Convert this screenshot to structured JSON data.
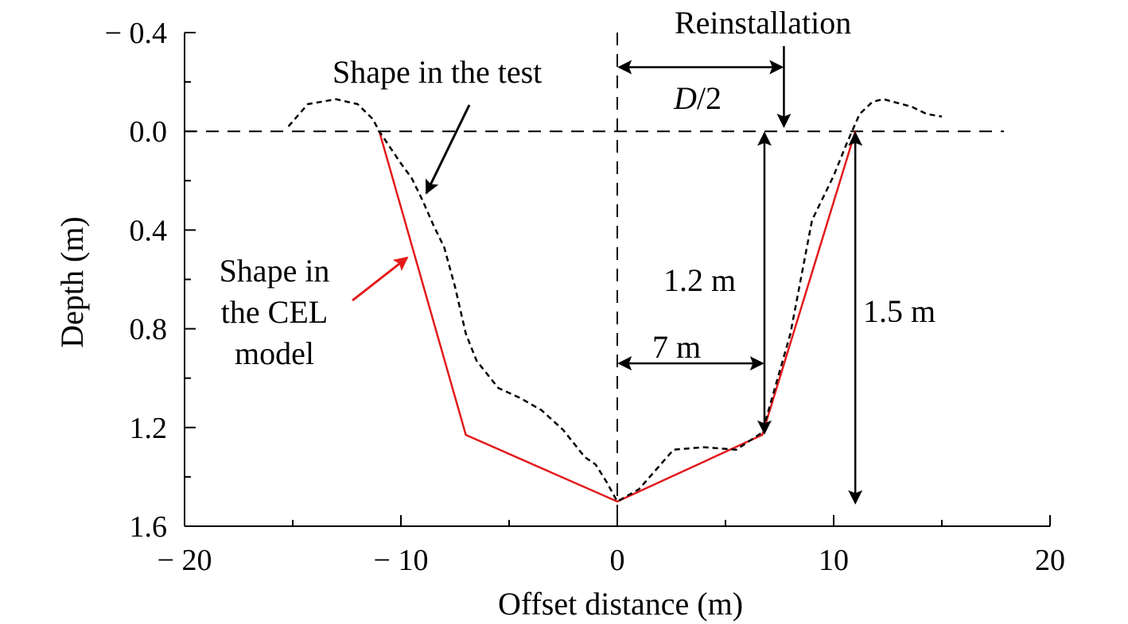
{
  "chart_data": {
    "type": "line",
    "xlabel": "Offset distance (m)",
    "ylabel": "Depth (m)",
    "xlim": [
      -20,
      20
    ],
    "ylim": [
      -0.4,
      1.6
    ],
    "y_inverted": true,
    "x_ticks": [
      -20,
      -10,
      0,
      10,
      20
    ],
    "x_tick_labels": [
      "− 20",
      "− 10",
      "0",
      "10",
      "20"
    ],
    "y_ticks": [
      -0.4,
      0.0,
      0.4,
      0.8,
      1.2,
      1.6
    ],
    "y_tick_labels": [
      "− 0.4",
      "0.0",
      "0.4",
      "0.8",
      "1.2",
      "1.6"
    ],
    "grid": false,
    "series": [
      {
        "name": "Shape in the CEL model",
        "color": "#e31a1c",
        "style": "solid",
        "x": [
          -11,
          -7,
          0,
          6.7,
          11
        ],
        "y": [
          0.0,
          1.23,
          1.5,
          1.23,
          0.0
        ]
      },
      {
        "name": "Shape in the test",
        "color": "#000000",
        "style": "dashed",
        "x": [
          -15.2,
          -14.3,
          -13,
          -12,
          -11.3,
          -11,
          -10,
          -9.5,
          -9,
          -8.5,
          -8,
          -7.5,
          -7,
          -6.5,
          -5.5,
          -4.5,
          -3.5,
          -2.5,
          -1.5,
          -1,
          -0.5,
          0,
          1,
          2,
          2.6,
          4,
          5.5,
          6.7,
          8,
          9,
          10,
          10.6,
          11.2,
          11.8,
          12.3,
          13.6,
          14.3,
          15
        ],
        "y": [
          -0.02,
          -0.11,
          -0.13,
          -0.11,
          -0.05,
          0.0,
          0.13,
          0.19,
          0.28,
          0.38,
          0.47,
          0.63,
          0.82,
          0.93,
          1.04,
          1.08,
          1.13,
          1.21,
          1.32,
          1.35,
          1.42,
          1.5,
          1.45,
          1.35,
          1.29,
          1.28,
          1.29,
          1.22,
          0.82,
          0.36,
          0.18,
          0.05,
          -0.07,
          -0.12,
          -0.13,
          -0.1,
          -0.07,
          -0.06
        ]
      }
    ],
    "reference_lines": [
      {
        "orientation": "horizontal",
        "value": 0.0,
        "style": "dashed"
      },
      {
        "orientation": "vertical",
        "value": 0,
        "style": "dashed"
      }
    ],
    "annotations": {
      "test_label": "Shape in the test",
      "cel_label_lines": [
        "Shape in",
        "the CEL",
        "model"
      ],
      "reinstallation": "Reinstallation",
      "half_diameter_var": "D",
      "half_diameter_rest": "/2",
      "depth_1_2": "1.2 m",
      "depth_1_5": "1.5 m",
      "offset_7": "7 m"
    },
    "marker_values": {
      "reinstallation_x": 7.7,
      "half_diameter_y": -0.26,
      "offset_7_y": 0.94,
      "depth_1_2_x": 6.8,
      "depth_1_5_x": 11
    }
  }
}
